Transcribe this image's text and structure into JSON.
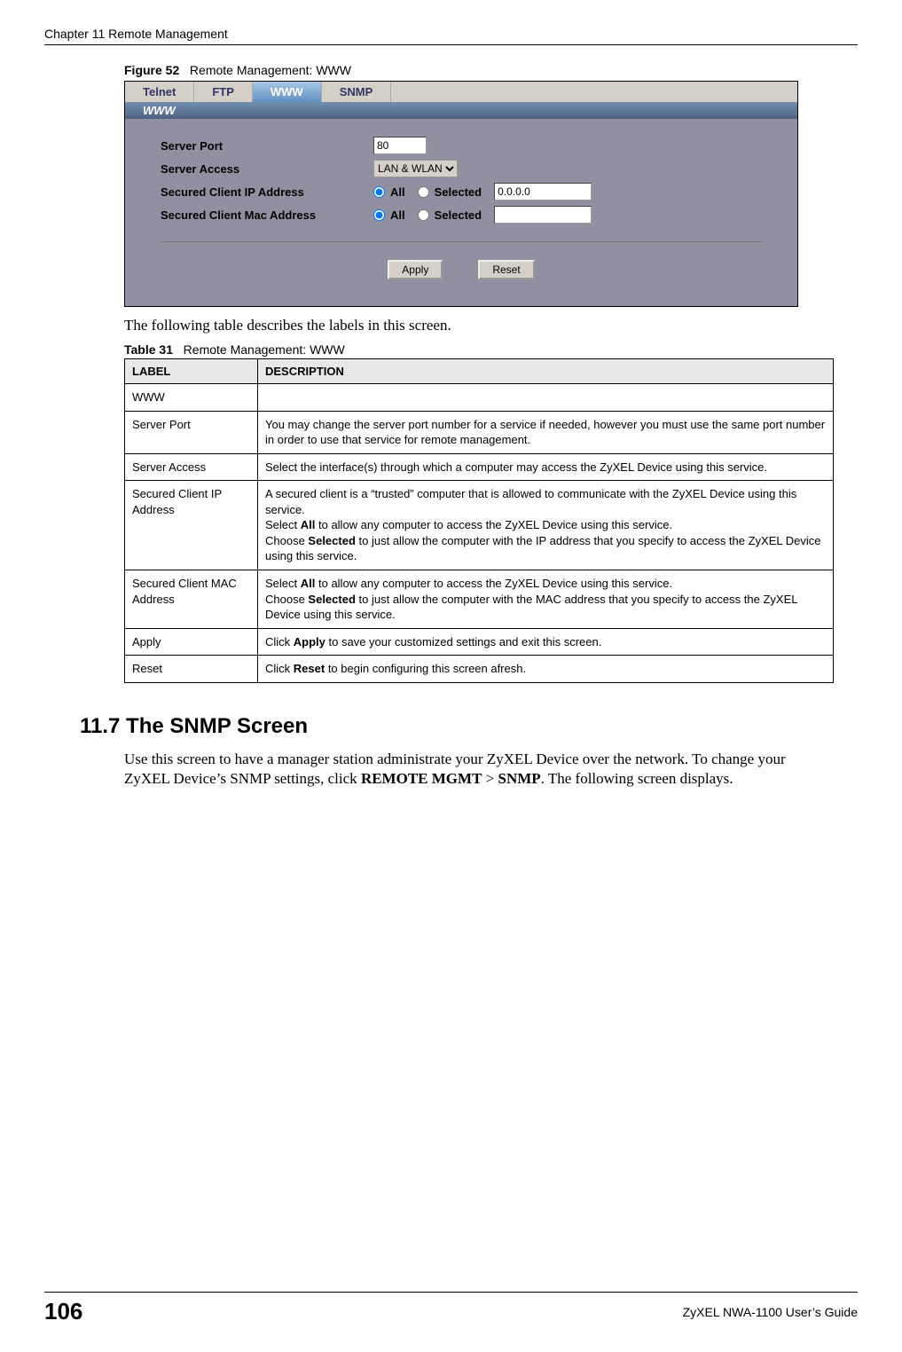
{
  "header": {
    "chapter_title": "Chapter 11 Remote Management"
  },
  "figure": {
    "label": "Figure 52",
    "title": "Remote Management: WWW"
  },
  "screenshot": {
    "tabs": {
      "telnet": "Telnet",
      "ftp": "FTP",
      "www": "WWW",
      "snmp": "SNMP"
    },
    "section_label": "WWW",
    "labels": {
      "server_port": "Server Port",
      "server_access": "Server Access",
      "secured_ip": "Secured Client IP Address",
      "secured_mac": "Secured Client Mac Address"
    },
    "values": {
      "port": "80",
      "access": "LAN & WLAN",
      "ip_selected": "0.0.0.0",
      "mac_selected": ""
    },
    "radio": {
      "all": "All",
      "selected": "Selected"
    },
    "buttons": {
      "apply": "Apply",
      "reset": "Reset"
    }
  },
  "intro_text": "The following table describes the labels in this screen.",
  "table": {
    "label": "Table 31",
    "title": "Remote Management: WWW",
    "headers": {
      "label": "LABEL",
      "description": "DESCRIPTION"
    },
    "rows": {
      "www_label": "WWW",
      "www_desc": "",
      "port_label": "Server Port",
      "port_desc": "You may change the server port number for a service if needed, however you must use the same port number in order to use that service for remote management.",
      "access_label": "Server Access",
      "access_desc": "Select the interface(s) through which a computer may access the ZyXEL Device using this service.",
      "ip_label": "Secured Client IP Address",
      "ip_desc_1": "A secured client is a “trusted” computer that is allowed to communicate with the ZyXEL Device using this service.",
      "ip_desc_2a": "Select ",
      "ip_desc_2b": "All",
      "ip_desc_2c": " to allow any computer to access the ZyXEL Device using this service.",
      "ip_desc_3a": "Choose ",
      "ip_desc_3b": "Selected",
      "ip_desc_3c": " to just allow the computer with the IP address that you specify to access the ZyXEL Device using this service.",
      "mac_label": "Secured Client MAC Address",
      "mac_desc_1a": "Select ",
      "mac_desc_1b": "All",
      "mac_desc_1c": " to allow any computer to access the ZyXEL Device using this service.",
      "mac_desc_2a": "Choose ",
      "mac_desc_2b": "Selected",
      "mac_desc_2c": " to just allow the computer with the MAC address that you specify to access the ZyXEL Device using this service.",
      "apply_label": "Apply",
      "apply_desc_1": "Click ",
      "apply_desc_2": "Apply",
      "apply_desc_3": " to save your customized settings and exit this screen.",
      "reset_label": "Reset",
      "reset_desc_1": "Click ",
      "reset_desc_2": "Reset",
      "reset_desc_3": " to begin configuring this screen afresh."
    }
  },
  "section": {
    "heading": "11.7  The SNMP Screen",
    "body_1": "Use this screen to have a manager station administrate your ZyXEL Device over the network. To change your ZyXEL Device’s SNMP settings, click ",
    "body_2": "REMOTE MGMT",
    "body_3": " > ",
    "body_4": "SNMP",
    "body_5": ". The following screen displays."
  },
  "footer": {
    "page": "106",
    "guide": "ZyXEL NWA-1100 User’s Guide"
  }
}
